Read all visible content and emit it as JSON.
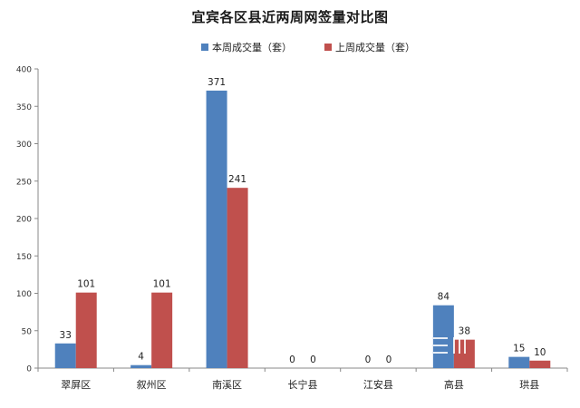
{
  "chart_data": {
    "type": "bar",
    "title": "宜宾各区县近两周网签量对比图",
    "categories": [
      "翠屏区",
      "叙州区",
      "南溪区",
      "长宁县",
      "江安县",
      "高县",
      "珙县"
    ],
    "series": [
      {
        "name": "本周成交量（套）",
        "color": "#4f81bd",
        "values": [
          33,
          4,
          371,
          0,
          0,
          84,
          15
        ]
      },
      {
        "name": "上周成交量（套）",
        "color": "#c0504d",
        "values": [
          101,
          101,
          241,
          0,
          0,
          38,
          10
        ]
      }
    ],
    "ylim": [
      0,
      400
    ],
    "yticks": [
      0,
      50,
      100,
      150,
      200,
      250,
      300,
      350,
      400
    ],
    "legend_position": "top-center",
    "grid": false,
    "xlabel": "",
    "ylabel": ""
  }
}
